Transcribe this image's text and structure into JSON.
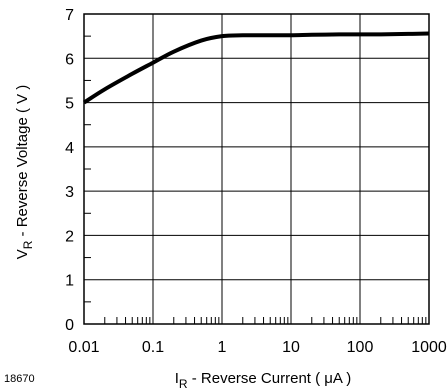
{
  "figure_id": "18670",
  "chart_data": {
    "type": "line",
    "x_scale": "log",
    "xlim": [
      0.01,
      1000
    ],
    "ylim": [
      0,
      7
    ],
    "grid": true,
    "x_ticks": [
      0.01,
      0.1,
      1,
      10,
      100,
      1000
    ],
    "x_tick_labels": [
      "0.01",
      "0.1",
      "1",
      "10",
      "100",
      "1000"
    ],
    "y_ticks": [
      0,
      1,
      2,
      3,
      4,
      5,
      6,
      7
    ],
    "y_tick_labels": [
      "0",
      "1",
      "2",
      "3",
      "4",
      "5",
      "6",
      "7"
    ],
    "xlabel": {
      "main": "I",
      "sub": "R",
      "rest": " - Reverse Current ( μA )"
    },
    "ylabel": {
      "main": "V",
      "sub": "R",
      "rest": " - Reverse Voltage ( V )"
    },
    "series": [
      {
        "color": "#000000",
        "x": [
          0.01,
          0.02,
          0.05,
          0.1,
          0.2,
          0.5,
          1,
          2,
          5,
          10,
          20,
          50,
          100,
          200,
          500,
          1000
        ],
        "y": [
          5.0,
          5.3,
          5.65,
          5.9,
          6.15,
          6.4,
          6.5,
          6.52,
          6.52,
          6.52,
          6.53,
          6.54,
          6.54,
          6.54,
          6.55,
          6.56
        ]
      }
    ]
  }
}
